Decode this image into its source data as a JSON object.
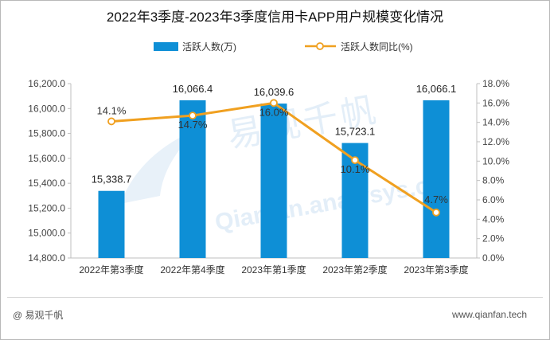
{
  "footer": {
    "left": "@ 易观千帆",
    "right": "www.qianfan.tech"
  },
  "watermark": {
    "logo_text": "易观千帆",
    "url_text": "Qianfan.analysys.cn"
  },
  "chart_data": {
    "type": "bar",
    "title": "2022年3季度-2023年3季度信用卡APP用户规模变化情况",
    "categories": [
      "2022年第3季度",
      "2022年第4季度",
      "2023年第1季度",
      "2023年第2季度",
      "2023年第3季度"
    ],
    "series": [
      {
        "name": "活跃人数(万)",
        "type": "bar",
        "axis": "left",
        "values": [
          15338.7,
          16066.4,
          16039.6,
          15723.1,
          16066.1
        ],
        "labels": [
          "15,338.7",
          "16,066.4",
          "16,039.6",
          "15,723.1",
          "16,066.1"
        ],
        "color": "#0e8fd6"
      },
      {
        "name": "活跃人数同比(%)",
        "type": "line",
        "axis": "right",
        "values": [
          14.1,
          14.7,
          16.0,
          10.1,
          4.7
        ],
        "labels": [
          "14.1%",
          "14.7%",
          "16.0%",
          "10.1%",
          "4.7%"
        ],
        "color": "#f0a020"
      }
    ],
    "y_left": {
      "min": 14800,
      "max": 16200,
      "ticks": [
        "14,800.0",
        "15,000.0",
        "15,200.0",
        "15,400.0",
        "15,600.0",
        "15,800.0",
        "16,000.0",
        "16,200.0"
      ]
    },
    "y_right": {
      "min": 0,
      "max": 18,
      "ticks": [
        "0.0%",
        "2.0%",
        "4.0%",
        "6.0%",
        "8.0%",
        "10.0%",
        "12.0%",
        "14.0%",
        "16.0%",
        "18.0%"
      ]
    },
    "grid": false,
    "legend_position": "top"
  }
}
